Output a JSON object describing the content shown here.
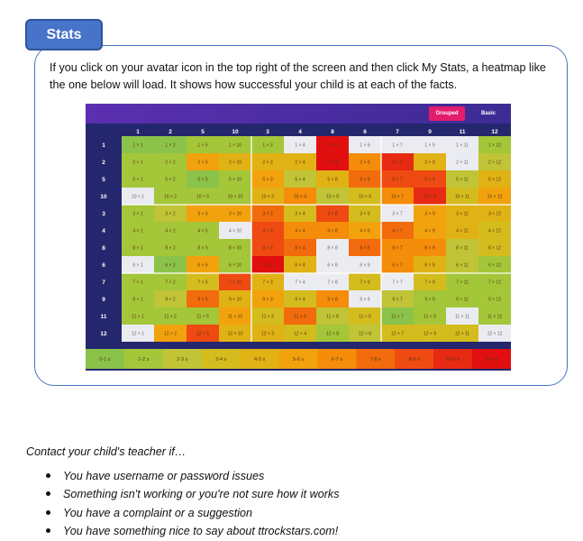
{
  "tab_label": "Stats",
  "intro_text": "If you click on your avatar icon in the top right of the screen and then click My Stats, a heatmap like the one below will load. It shows how successful your child is at each of the facts.",
  "heatmap": {
    "buttons": {
      "grouped": "Grouped",
      "basic": "Basic"
    },
    "factors": [
      1,
      2,
      5,
      10,
      3,
      4,
      8,
      6,
      7,
      9,
      11,
      12
    ],
    "legend": [
      {
        "label": "0-1 s",
        "color": "#8bc34a"
      },
      {
        "label": "1-2 s",
        "color": "#a4c639"
      },
      {
        "label": "2-3 s",
        "color": "#c0c436"
      },
      {
        "label": "3-4 s",
        "color": "#d4bc1e"
      },
      {
        "label": "4-5 s",
        "color": "#e0b215"
      },
      {
        "label": "5-6 s",
        "color": "#f2a20d"
      },
      {
        "label": "6-7 s",
        "color": "#f58c0a"
      },
      {
        "label": "7-8 s",
        "color": "#f26b0c"
      },
      {
        "label": "8-9 s",
        "color": "#ee4a12"
      },
      {
        "label": "9-10 s",
        "color": "#e72a13"
      },
      {
        "label": "10+ s",
        "color": "#e10f0f"
      }
    ],
    "untested_color": "#ebebf2",
    "grid": [
      [
        0,
        0,
        1,
        1,
        1,
        -1,
        10,
        -1,
        -1,
        -1,
        -1,
        1
      ],
      [
        1,
        1,
        5,
        4,
        4,
        4,
        10,
        6,
        9,
        4,
        -1,
        2
      ],
      [
        1,
        1,
        0,
        1,
        5,
        2,
        4,
        7,
        8,
        8,
        2,
        4
      ],
      [
        -1,
        1,
        1,
        1,
        4,
        6,
        2,
        3,
        6,
        9,
        3,
        5
      ],
      [
        1,
        2,
        5,
        5,
        7,
        3,
        8,
        3,
        -1,
        5,
        4,
        4
      ],
      [
        1,
        1,
        1,
        -1,
        8,
        6,
        6,
        5,
        7,
        5,
        4,
        3
      ],
      [
        1,
        1,
        1,
        1,
        8,
        7,
        -1,
        7,
        6,
        6,
        2,
        3
      ],
      [
        -1,
        0,
        5,
        1,
        10,
        4,
        -1,
        -1,
        6,
        4,
        2,
        1
      ],
      [
        1,
        1,
        3,
        8,
        4,
        -1,
        -1,
        3,
        -1,
        3,
        1,
        1
      ],
      [
        1,
        2,
        7,
        4,
        5,
        3,
        6,
        -1,
        2,
        1,
        1,
        1
      ],
      [
        1,
        1,
        1,
        5,
        3,
        7,
        2,
        3,
        0,
        1,
        -1,
        1
      ],
      [
        -1,
        5,
        8,
        4,
        4,
        3,
        1,
        2,
        3,
        3,
        3,
        -1
      ]
    ]
  },
  "contact": {
    "intro": "Contact your child's teacher if…",
    "items": [
      "You have username or password issues",
      "Something isn't working or you're not sure how it works",
      "You have a complaint or a suggestion",
      "You have something nice to say about ttrockstars.com!"
    ]
  }
}
